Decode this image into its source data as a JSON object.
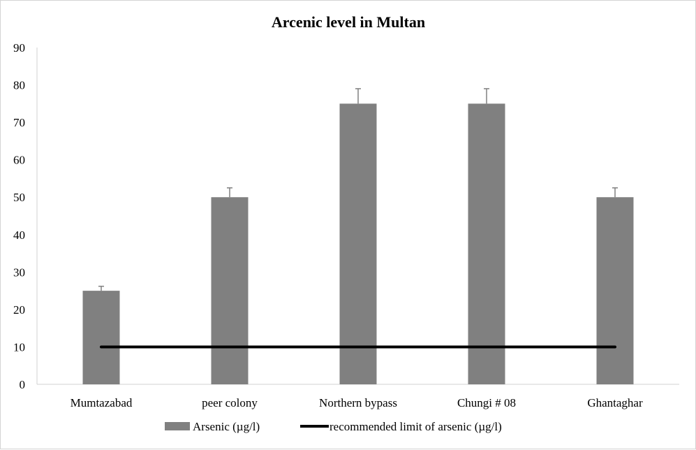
{
  "chart_data": {
    "type": "bar",
    "title": "Arcenic level in Multan",
    "categories": [
      "Mumtazabad",
      "peer colony",
      "Northern bypass",
      "Chungi # 08",
      "Ghantaghar"
    ],
    "series": [
      {
        "name": "Arsenic (µg/l)",
        "type": "bar",
        "values": [
          25,
          50,
          75,
          75,
          50
        ],
        "error_plus": [
          1.2,
          2.5,
          4,
          4,
          2.5
        ],
        "color": "#808080"
      },
      {
        "name": "recommended limit of arsenic (µg/l)",
        "type": "line",
        "values": [
          10,
          10,
          10,
          10,
          10
        ],
        "color": "#000000"
      }
    ],
    "ylim": [
      0,
      90
    ],
    "yticks": [
      "0",
      "10",
      "20",
      "30",
      "40",
      "50",
      "60",
      "70",
      "80",
      "90"
    ],
    "grid": false,
    "legend_position": "bottom"
  }
}
